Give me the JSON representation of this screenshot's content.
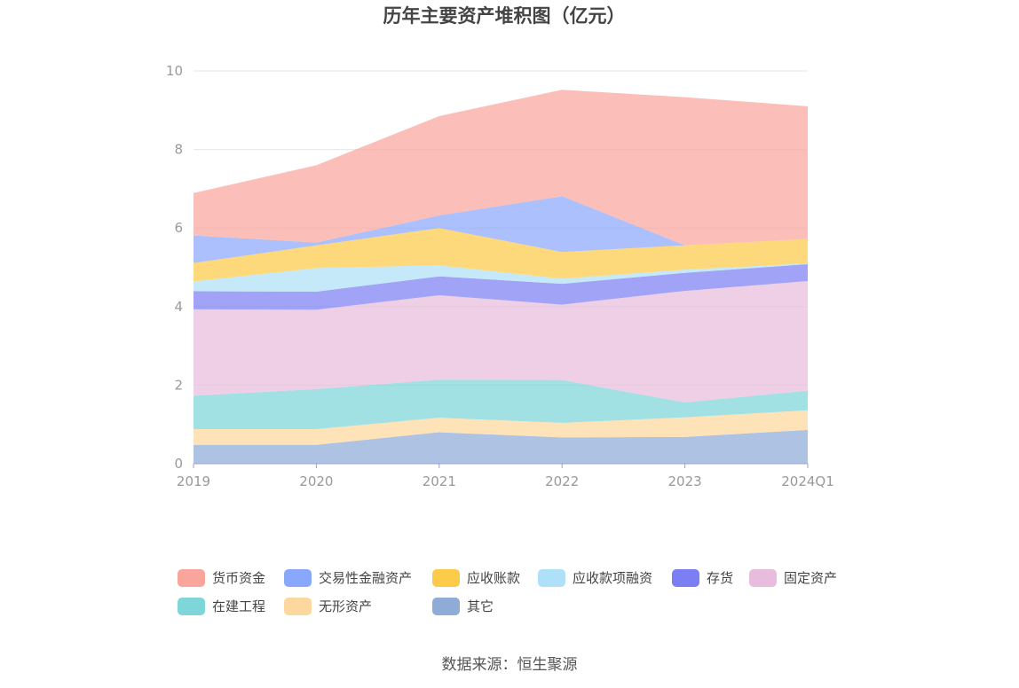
{
  "chart_data": {
    "type": "area",
    "stacked": true,
    "title": "历年主要资产堆积图（亿元）",
    "categories": [
      "2019",
      "2020",
      "2021",
      "2022",
      "2023",
      "2024Q1"
    ],
    "ylim": [
      0,
      10
    ],
    "yticks": [
      "0",
      "2",
      "4",
      "6",
      "8",
      "10"
    ],
    "grid": true,
    "legend_position": "bottom",
    "series": [
      {
        "name": "其它",
        "color": "#8facd8",
        "values": [
          0.48,
          0.48,
          0.8,
          0.67,
          0.68,
          0.86
        ]
      },
      {
        "name": "无形资产",
        "color": "#fdd89e",
        "values": [
          0.4,
          0.4,
          0.37,
          0.37,
          0.5,
          0.5
        ]
      },
      {
        "name": "在建工程",
        "color": "#7ed6d8",
        "values": [
          0.85,
          1.02,
          0.97,
          1.09,
          0.38,
          0.5
        ]
      },
      {
        "name": "固定资产",
        "color": "#e8bcdc",
        "values": [
          2.2,
          2.02,
          2.15,
          1.92,
          2.84,
          2.79
        ]
      },
      {
        "name": "存货",
        "color": "#7b7ff3",
        "values": [
          0.46,
          0.46,
          0.48,
          0.53,
          0.46,
          0.43
        ]
      },
      {
        "name": "应收款项融资",
        "color": "#aee0f7",
        "values": [
          0.25,
          0.6,
          0.28,
          0.13,
          0.08,
          0.02
        ]
      },
      {
        "name": "应收账款",
        "color": "#fdcb4a",
        "values": [
          0.47,
          0.58,
          0.95,
          0.68,
          0.62,
          0.62
        ]
      },
      {
        "name": "交易性金融资产",
        "color": "#8aa8fb",
        "values": [
          0.7,
          0.07,
          0.32,
          1.42,
          0.0,
          0.0
        ]
      },
      {
        "name": "货币资金",
        "color": "#f9a59c",
        "values": [
          1.08,
          1.97,
          2.53,
          2.71,
          3.77,
          3.38
        ]
      }
    ],
    "legend_order": [
      "货币资金",
      "交易性金融资产",
      "应收账款",
      "应收款项融资",
      "存货",
      "固定资产",
      "在建工程",
      "无形资产",
      "其它"
    ]
  },
  "source": "数据来源：恒生聚源"
}
